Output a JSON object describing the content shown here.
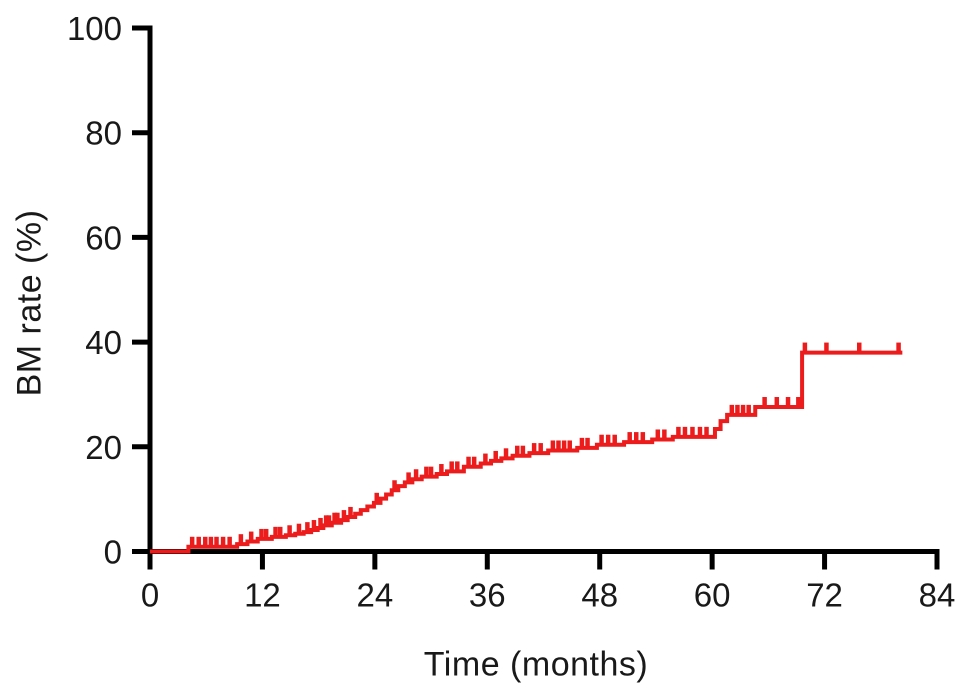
{
  "chart_data": {
    "type": "line",
    "subtype": "kaplan_meier_cumulative_incidence_step",
    "title": "",
    "xlabel": "Time (months)",
    "ylabel": "BM rate (%)",
    "xlim": [
      0,
      84
    ],
    "ylim": [
      0,
      100
    ],
    "xticks": [
      0,
      12,
      24,
      36,
      48,
      60,
      72,
      84
    ],
    "yticks": [
      0,
      20,
      40,
      60,
      80,
      100
    ],
    "grid": false,
    "legend": false,
    "axis_color": "#000000",
    "text_color": "#191919",
    "series": [
      {
        "name": "BM rate",
        "color": "#ec1c1c",
        "start": [
          0,
          0
        ],
        "end_time": 80.3,
        "steps": [
          [
            4.1,
            0.9
          ],
          [
            9.3,
            1.4
          ],
          [
            10.4,
            1.9
          ],
          [
            11.5,
            2.4
          ],
          [
            13.0,
            2.8
          ],
          [
            14.5,
            3.1
          ],
          [
            15.5,
            3.4
          ],
          [
            16.4,
            3.7
          ],
          [
            17.2,
            4.1
          ],
          [
            17.9,
            4.5
          ],
          [
            18.5,
            5.0
          ],
          [
            19.4,
            5.5
          ],
          [
            20.4,
            6.0
          ],
          [
            21.1,
            6.6
          ],
          [
            21.9,
            7.2
          ],
          [
            22.5,
            7.9
          ],
          [
            23.2,
            8.6
          ],
          [
            23.9,
            9.3
          ],
          [
            24.6,
            10.1
          ],
          [
            25.2,
            10.9
          ],
          [
            25.8,
            11.7
          ],
          [
            26.5,
            12.5
          ],
          [
            27.2,
            13.2
          ],
          [
            28.0,
            13.8
          ],
          [
            29.0,
            14.3
          ],
          [
            30.6,
            14.8
          ],
          [
            31.7,
            15.3
          ],
          [
            33.5,
            16.2
          ],
          [
            35.3,
            16.8
          ],
          [
            36.4,
            17.3
          ],
          [
            37.5,
            17.8
          ],
          [
            38.7,
            18.3
          ],
          [
            40.5,
            18.8
          ],
          [
            42.5,
            19.3
          ],
          [
            45.6,
            19.8
          ],
          [
            47.7,
            20.4
          ],
          [
            50.6,
            20.9
          ],
          [
            53.6,
            21.4
          ],
          [
            55.8,
            21.9
          ],
          [
            60.3,
            23.4
          ],
          [
            60.9,
            24.9
          ],
          [
            61.6,
            26.1
          ],
          [
            64.6,
            27.6
          ],
          [
            69.6,
            38.0
          ]
        ],
        "censor_times": [
          4.5,
          5.2,
          5.9,
          6.5,
          7.1,
          7.8,
          8.5,
          9.7,
          10.8,
          11.9,
          12.4,
          13.4,
          13.9,
          14.9,
          15.9,
          16.8,
          17.5,
          18.2,
          18.8,
          19.1,
          19.7,
          20.0,
          20.7,
          21.4,
          24.2,
          26.1,
          27.6,
          28.4,
          29.5,
          30.0,
          31.1,
          32.2,
          32.8,
          34.0,
          34.6,
          35.8,
          36.9,
          38.0,
          39.2,
          39.8,
          41.0,
          41.7,
          43.0,
          43.6,
          44.2,
          44.8,
          46.1,
          46.7,
          48.2,
          48.9,
          49.6,
          51.2,
          51.9,
          52.6,
          54.2,
          54.9,
          56.4,
          57.1,
          57.9,
          58.7,
          59.4,
          62.1,
          62.7,
          63.3,
          63.9,
          65.6,
          66.9,
          68.1,
          69.2,
          69.9,
          72.2,
          75.7,
          79.9
        ]
      }
    ]
  }
}
